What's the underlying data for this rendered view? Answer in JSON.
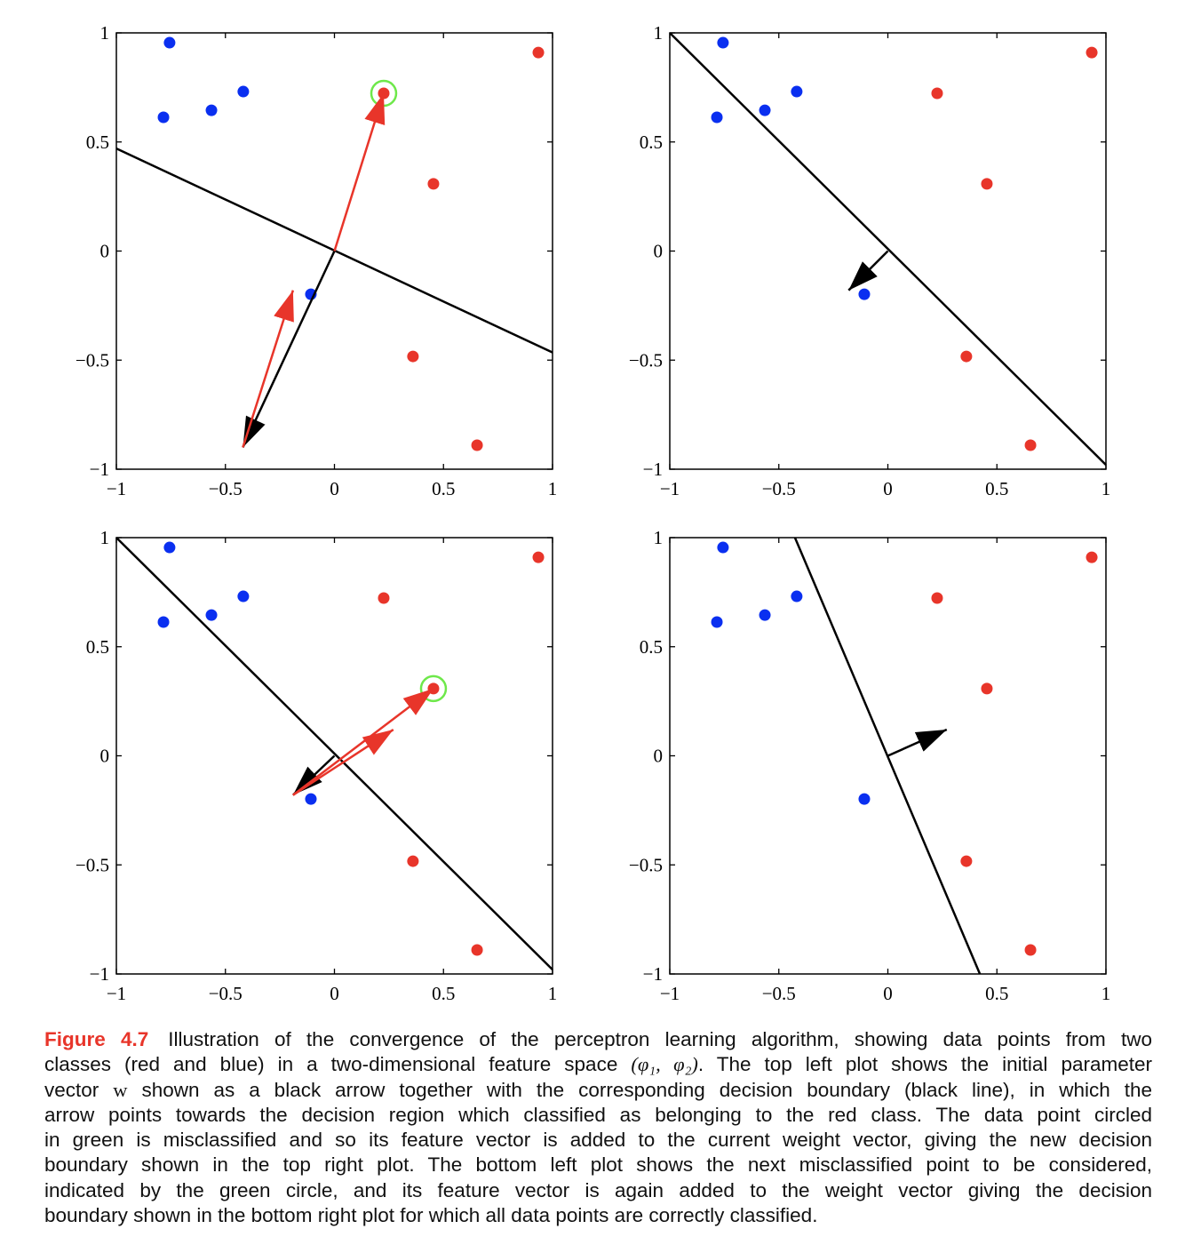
{
  "colors": {
    "red": "#e8352a",
    "blue": "#0a2ff0",
    "green": "#6ee84a",
    "black": "#000000"
  },
  "chart_data": [
    {
      "type": "scatter",
      "panel": "top-left",
      "xlim": [
        -1,
        1
      ],
      "ylim": [
        -1,
        1
      ],
      "xticks": [
        -1,
        -0.5,
        0,
        0.5,
        1
      ],
      "yticks": [
        -1,
        -0.5,
        0,
        0.5,
        1
      ],
      "xtick_labels": [
        "−1",
        "−0.5",
        "0",
        "0.5",
        "1"
      ],
      "ytick_labels": [
        "−1",
        "−0.5",
        "0",
        "0.5",
        "1"
      ],
      "blue_points": [
        [
          -0.756,
          0.955
        ],
        [
          -0.784,
          0.613
        ],
        [
          -0.564,
          0.645
        ],
        [
          -0.418,
          0.731
        ],
        [
          -0.108,
          -0.198
        ]
      ],
      "red_points": [
        [
          0.935,
          0.91
        ],
        [
          0.226,
          0.723
        ],
        [
          0.454,
          0.308
        ],
        [
          0.36,
          -0.483
        ],
        [
          0.654,
          -0.89
        ]
      ],
      "circled_point": [
        0.226,
        0.723
      ],
      "boundary": [
        [
          -1,
          0.47
        ],
        [
          1,
          -0.465
        ]
      ],
      "arrows": [
        {
          "color": "black",
          "from": [
            0,
            0
          ],
          "to": [
            -0.42,
            -0.9
          ]
        },
        {
          "color": "red",
          "from": [
            0,
            0
          ],
          "to": [
            0.226,
            0.723
          ]
        },
        {
          "color": "red",
          "from": [
            -0.42,
            -0.9
          ],
          "to": [
            -0.19,
            -0.18
          ]
        }
      ]
    },
    {
      "type": "scatter",
      "panel": "top-right",
      "xlim": [
        -1,
        1
      ],
      "ylim": [
        -1,
        1
      ],
      "xticks": [
        -1,
        -0.5,
        0,
        0.5,
        1
      ],
      "yticks": [
        -1,
        -0.5,
        0,
        0.5,
        1
      ],
      "xtick_labels": [
        "−1",
        "−0.5",
        "0",
        "0.5",
        "1"
      ],
      "ytick_labels": [
        "−1",
        "−0.5",
        "0",
        "0.5",
        "1"
      ],
      "blue_points": [
        [
          -0.756,
          0.955
        ],
        [
          -0.784,
          0.613
        ],
        [
          -0.564,
          0.645
        ],
        [
          -0.418,
          0.731
        ],
        [
          -0.108,
          -0.198
        ]
      ],
      "red_points": [
        [
          0.935,
          0.91
        ],
        [
          0.226,
          0.723
        ],
        [
          0.454,
          0.308
        ],
        [
          0.36,
          -0.483
        ],
        [
          0.654,
          -0.89
        ]
      ],
      "circled_point": null,
      "boundary": [
        [
          -1,
          1
        ],
        [
          1,
          -0.98
        ]
      ],
      "arrows": [
        {
          "color": "black",
          "from": [
            0,
            0
          ],
          "to": [
            -0.18,
            -0.18
          ]
        }
      ]
    },
    {
      "type": "scatter",
      "panel": "bottom-left",
      "xlim": [
        -1,
        1
      ],
      "ylim": [
        -1,
        1
      ],
      "xticks": [
        -1,
        -0.5,
        0,
        0.5,
        1
      ],
      "yticks": [
        -1,
        -0.5,
        0,
        0.5,
        1
      ],
      "xtick_labels": [
        "−1",
        "−0.5",
        "0",
        "0.5",
        "1"
      ],
      "ytick_labels": [
        "−1",
        "−0.5",
        "0",
        "0.5",
        "1"
      ],
      "blue_points": [
        [
          -0.756,
          0.955
        ],
        [
          -0.784,
          0.613
        ],
        [
          -0.564,
          0.645
        ],
        [
          -0.418,
          0.731
        ],
        [
          -0.108,
          -0.198
        ]
      ],
      "red_points": [
        [
          0.935,
          0.91
        ],
        [
          0.226,
          0.723
        ],
        [
          0.454,
          0.308
        ],
        [
          0.36,
          -0.483
        ],
        [
          0.654,
          -0.89
        ]
      ],
      "circled_point": [
        0.454,
        0.308
      ],
      "boundary": [
        [
          -1,
          1
        ],
        [
          1,
          -0.98
        ]
      ],
      "arrows": [
        {
          "color": "black",
          "from": [
            0,
            0
          ],
          "to": [
            -0.19,
            -0.18
          ]
        },
        {
          "color": "red",
          "from": [
            -0.19,
            -0.18
          ],
          "to": [
            0.454,
            0.308
          ]
        },
        {
          "color": "red",
          "from": [
            -0.19,
            -0.18
          ],
          "to": [
            0.27,
            0.12
          ]
        }
      ]
    },
    {
      "type": "scatter",
      "panel": "bottom-right",
      "xlim": [
        -1,
        1
      ],
      "ylim": [
        -1,
        1
      ],
      "xticks": [
        -1,
        -0.5,
        0,
        0.5,
        1
      ],
      "yticks": [
        -1,
        -0.5,
        0,
        0.5,
        1
      ],
      "xtick_labels": [
        "−1",
        "−0.5",
        "0",
        "0.5",
        "1"
      ],
      "ytick_labels": [
        "−1",
        "−0.5",
        "0",
        "0.5",
        "1"
      ],
      "blue_points": [
        [
          -0.756,
          0.955
        ],
        [
          -0.784,
          0.613
        ],
        [
          -0.564,
          0.645
        ],
        [
          -0.418,
          0.731
        ],
        [
          -0.108,
          -0.198
        ]
      ],
      "red_points": [
        [
          0.935,
          0.91
        ],
        [
          0.226,
          0.723
        ],
        [
          0.454,
          0.308
        ],
        [
          0.36,
          -0.483
        ],
        [
          0.654,
          -0.89
        ]
      ],
      "circled_point": null,
      "boundary": [
        [
          -0.426,
          1
        ],
        [
          0.422,
          -1
        ]
      ],
      "arrows": [
        {
          "color": "black",
          "from": [
            0,
            0
          ],
          "to": [
            0.27,
            0.12
          ]
        }
      ]
    }
  ],
  "caption": {
    "label": "Figure 4.7",
    "l1": "Illustration of the convergence of the perceptron learning algorithm, showing data points from two",
    "l2a": "classes (red and blue) in a two-dimensional feature space",
    "l2m": "(φ₁, φ₂)",
    "l2b": ". The top left plot shows the initial parameter",
    "l3a": "vector",
    "l3v": "w",
    "l3b": "shown as a black arrow together with the corresponding decision boundary (black line), in which the",
    "l4": "arrow points towards the decision region which classified as belonging to the red class. The data point circled",
    "l5": "in green is misclassified and so its feature vector is added to the current weight vector, giving the new decision",
    "l6": "boundary shown in the top right plot. The bottom left plot shows the next misclassified point to be considered,",
    "l7": "indicated by the green circle, and its feature vector is again added to the weight vector giving the decision",
    "l8": "boundary shown in the bottom right plot for which all data points are correctly classified."
  }
}
